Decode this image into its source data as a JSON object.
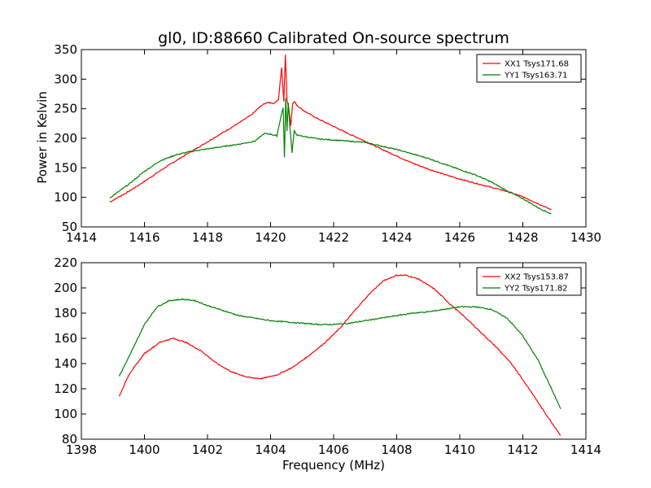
{
  "chart_data": [
    {
      "type": "line",
      "title": "gl0, ID:88660 Calibrated On-source spectrum",
      "xlabel": "",
      "ylabel": "Power in Kelvin",
      "xlim": [
        1414,
        1430
      ],
      "ylim": [
        50,
        350
      ],
      "xticks": [
        1414,
        1416,
        1418,
        1420,
        1422,
        1424,
        1426,
        1428,
        1430
      ],
      "yticks": [
        50,
        100,
        150,
        200,
        250,
        300,
        350
      ],
      "legend_position": "top-right",
      "series": [
        {
          "name": "XX1 Tsys171.68",
          "color": "#ff0000",
          "x": [
            1414.9,
            1415.5,
            1416,
            1416.5,
            1417,
            1417.5,
            1418,
            1418.5,
            1419,
            1419.4,
            1419.7,
            1419.9,
            1420.1,
            1420.25,
            1420.35,
            1420.42,
            1420.47,
            1420.52,
            1420.58,
            1420.64,
            1420.7,
            1420.76,
            1420.85,
            1421.1,
            1421.5,
            1422,
            1422.5,
            1423,
            1423.5,
            1424,
            1424.5,
            1425,
            1425.5,
            1426,
            1426.5,
            1427,
            1427.5,
            1428,
            1428.5,
            1428.9
          ],
          "y": [
            92,
            110,
            127,
            145,
            162,
            178,
            194,
            210,
            226,
            240,
            255,
            261,
            259,
            265,
            320,
            262,
            342,
            265,
            250,
            222,
            258,
            262,
            255,
            245,
            233,
            220,
            207,
            195,
            182,
            170,
            158,
            148,
            139,
            131,
            124,
            117,
            110,
            101,
            89,
            79
          ]
        },
        {
          "name": "YY1 Tsys163.71",
          "color": "#008000",
          "x": [
            1414.9,
            1415.5,
            1416,
            1416.5,
            1417,
            1417.5,
            1418,
            1418.5,
            1419,
            1419.5,
            1419.8,
            1420,
            1420.2,
            1420.33,
            1420.4,
            1420.44,
            1420.48,
            1420.52,
            1420.56,
            1420.62,
            1420.68,
            1420.75,
            1420.85,
            1421.5,
            1422,
            1423,
            1424,
            1425,
            1426,
            1426.5,
            1427,
            1427.5,
            1428,
            1428.5,
            1428.9
          ],
          "y": [
            99,
            122,
            144,
            162,
            172,
            178,
            182,
            186,
            190,
            195,
            208,
            207,
            204,
            237,
            252,
            167,
            268,
            212,
            260,
            215,
            176,
            212,
            205,
            199,
            197,
            193,
            181,
            166,
            147,
            138,
            126,
            111,
            98,
            82,
            72
          ]
        }
      ]
    },
    {
      "type": "line",
      "title": "",
      "xlabel": "Frequency (MHz)",
      "ylabel": "",
      "xlim": [
        1398,
        1414
      ],
      "ylim": [
        80,
        220
      ],
      "xticks": [
        1398,
        1400,
        1402,
        1404,
        1406,
        1408,
        1410,
        1412,
        1414
      ],
      "yticks": [
        80,
        100,
        120,
        140,
        160,
        180,
        200,
        220
      ],
      "legend_position": "top-right",
      "series": [
        {
          "name": "XX2 Tsys153.87",
          "color": "#ff0000",
          "x": [
            1399.2,
            1399.5,
            1400,
            1400.5,
            1400.9,
            1401.3,
            1401.8,
            1402.3,
            1402.8,
            1403.3,
            1403.7,
            1404.2,
            1404.7,
            1405.2,
            1405.7,
            1406.2,
            1406.7,
            1407.2,
            1407.6,
            1408,
            1408.3,
            1408.7,
            1409.2,
            1409.7,
            1410.2,
            1410.7,
            1411.2,
            1411.7,
            1412.2,
            1412.7,
            1413.2
          ],
          "y": [
            114,
            131,
            148,
            157,
            160,
            157,
            150,
            140,
            133,
            129,
            128,
            131,
            137,
            146,
            156,
            168,
            183,
            197,
            206,
            210,
            210,
            207,
            199,
            187,
            176,
            164,
            152,
            138,
            120,
            101,
            83
          ]
        },
        {
          "name": "YY2 Tsys171.82",
          "color": "#008000",
          "x": [
            1399.2,
            1399.6,
            1400,
            1400.4,
            1400.8,
            1401.2,
            1401.6,
            1402,
            1402.5,
            1403,
            1403.5,
            1404,
            1404.5,
            1405,
            1405.5,
            1406,
            1406.5,
            1407,
            1407.5,
            1408,
            1408.5,
            1409,
            1409.5,
            1410,
            1410.5,
            1411,
            1411.5,
            1412,
            1412.5,
            1413,
            1413.2
          ],
          "y": [
            130,
            150,
            171,
            185,
            190,
            191,
            190,
            186,
            182,
            178,
            176,
            174,
            173,
            172,
            171,
            171,
            172,
            174,
            176,
            178,
            180,
            181,
            183,
            185,
            185,
            183,
            176,
            162,
            142,
            115,
            104
          ]
        }
      ]
    }
  ]
}
